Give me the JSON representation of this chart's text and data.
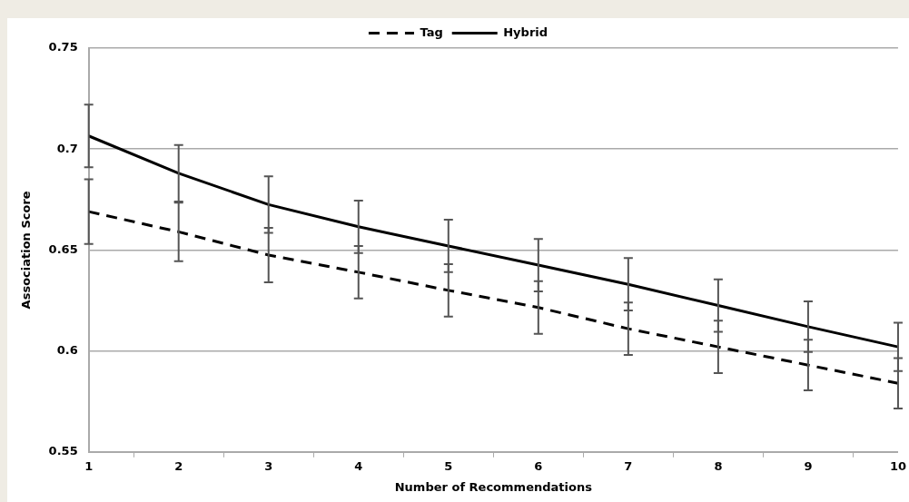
{
  "chart_data": {
    "type": "line",
    "xlabel": "Number of Recommendations",
    "ylabel": "Association Score",
    "categories": [
      "1",
      "2",
      "3",
      "4",
      "5",
      "6",
      "7",
      "8",
      "9",
      "10"
    ],
    "series": [
      {
        "name": "Tag",
        "color": "#000000",
        "line_style": "dashed",
        "values": [
          0.669,
          0.659,
          0.6475,
          0.639,
          0.63,
          0.6215,
          0.611,
          0.602,
          0.593,
          0.584
        ],
        "errors": [
          0.016,
          0.0145,
          0.0135,
          0.013,
          0.013,
          0.013,
          0.013,
          0.013,
          0.0125,
          0.0125
        ]
      },
      {
        "name": "Hybrid",
        "color": "#000000",
        "line_style": "solid",
        "values": [
          0.7065,
          0.688,
          0.6725,
          0.6615,
          0.652,
          0.6425,
          0.633,
          0.6225,
          0.612,
          0.602
        ],
        "errors": [
          0.0155,
          0.014,
          0.014,
          0.013,
          0.013,
          0.013,
          0.013,
          0.013,
          0.0125,
          0.012
        ]
      }
    ],
    "ylim": [
      0.55,
      0.75
    ],
    "yticks": [
      0.55,
      0.6,
      0.65,
      0.7,
      0.75
    ],
    "grid": "y",
    "legend": "top",
    "marker": "none"
  }
}
